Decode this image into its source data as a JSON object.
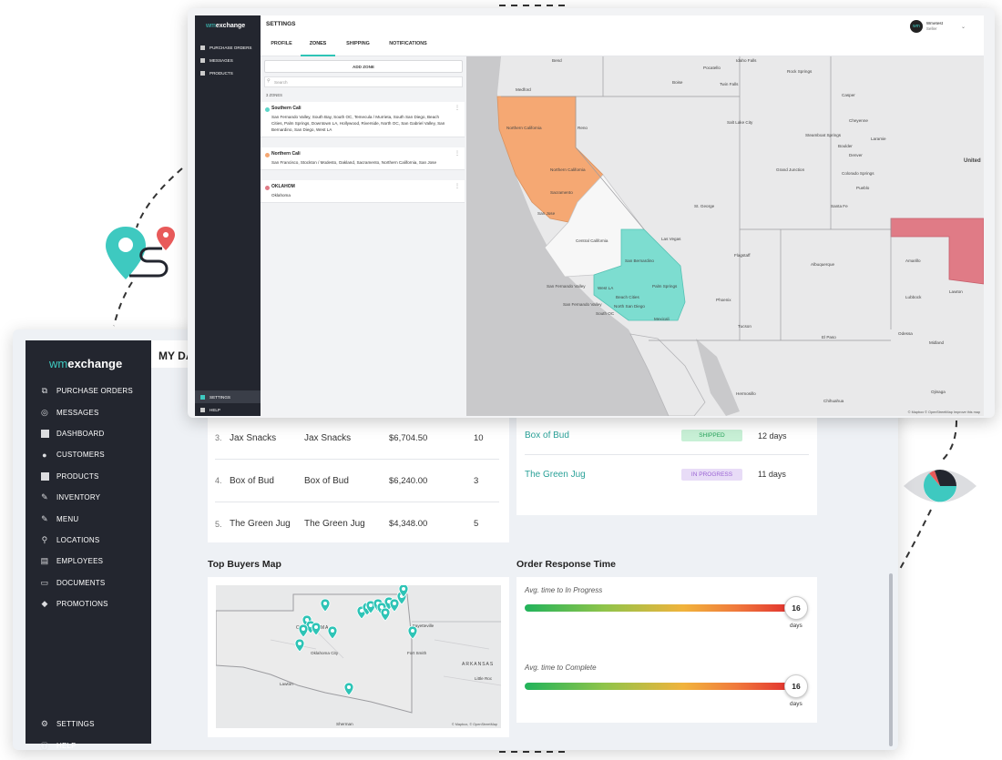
{
  "dashboard": {
    "brand": {
      "wm": "wm",
      "name": "exchange"
    },
    "header_title": "MY DAS",
    "nav": [
      {
        "label": "PURCHASE ORDERS",
        "icon": "purchase-orders-icon"
      },
      {
        "label": "MESSAGES",
        "icon": "messages-icon"
      },
      {
        "label": "DASHBOARD",
        "icon": "dashboard-icon"
      },
      {
        "label": "CUSTOMERS",
        "icon": "customers-icon"
      },
      {
        "label": "PRODUCTS",
        "icon": "products-icon"
      },
      {
        "label": "INVENTORY",
        "icon": "inventory-icon"
      },
      {
        "label": "MENU",
        "icon": "menu-icon"
      },
      {
        "label": "LOCATIONS",
        "icon": "locations-icon"
      },
      {
        "label": "EMPLOYEES",
        "icon": "employees-icon"
      },
      {
        "label": "DOCUMENTS",
        "icon": "documents-icon"
      },
      {
        "label": "PROMOTIONS",
        "icon": "promotions-icon"
      }
    ],
    "nav_bottom": [
      {
        "label": "SETTINGS",
        "icon": "settings-icon"
      },
      {
        "label": "HELP",
        "icon": "help-icon"
      }
    ],
    "top_customers": [
      {
        "rank": "3.",
        "customer": "Jax Snacks",
        "company": "Jax Snacks",
        "amount": "$6,704.50",
        "orders": "10"
      },
      {
        "rank": "4.",
        "customer": "Box of Bud",
        "company": "Box of Bud",
        "amount": "$6,240.00",
        "orders": "3"
      },
      {
        "rank": "5.",
        "customer": "The Green Jug",
        "company": "The Green Jug",
        "amount": "$4,348.00",
        "orders": "5"
      }
    ],
    "order_status": [
      {
        "name": "Box of Bud",
        "status": "SHIPPED",
        "days": "12 days"
      },
      {
        "name": "The Green Jug",
        "status": "IN PROGRESS",
        "days": "11 days"
      }
    ],
    "buyers_map": {
      "title": "Top Buyers Map",
      "labels": {
        "state": "OKLAHOMA",
        "fayetteville": "Fayetteville",
        "arkansas": "ARKANSAS",
        "little_rock": "Little Roc",
        "lawton": "Lawton",
        "sherman": "Sherman",
        "okc": "Oklahoma City",
        "ft_smith": "Fort Smith"
      },
      "attribution": "© Mapbox, © OpenStreetMap"
    },
    "response_time": {
      "title": "Order Response Time",
      "metrics": [
        {
          "label": "Avg. time to In Progress",
          "value": "16",
          "unit": "days",
          "fraction": 1.0
        },
        {
          "label": "Avg. time to Complete",
          "value": "16",
          "unit": "days",
          "fraction": 1.0
        }
      ]
    }
  },
  "settings": {
    "brand": {
      "wm": "wm",
      "name": "exchange"
    },
    "nav": [
      {
        "label": "PURCHASE ORDERS"
      },
      {
        "label": "MESSAGES"
      },
      {
        "label": "PRODUCTS"
      }
    ],
    "nav_bottom": [
      {
        "label": "SETTINGS"
      },
      {
        "label": "HELP"
      }
    ],
    "title": "SETTINGS",
    "tabs": [
      "PROFILE",
      "ZONES",
      "SHIPPING",
      "NOTIFICATIONS"
    ],
    "active_tab": "ZONES",
    "user": {
      "name": "Wmetest",
      "role": "Seller",
      "initials": "wm"
    },
    "add_zone_label": "ADD ZONE",
    "search_placeholder": "Search",
    "zone_count": "3 ZONES",
    "zones": [
      {
        "name": "Southern Cali",
        "color": "#5dd6c9",
        "desc": "San Fernando Valley, South Bay, South OC, Temecula / Murrieta, South San Diego, Beach Cities, Palm Springs, Downtown LA, Hollywood, Riverside, North OC, San Gabriel Valley, San Bernardino, San Diego, West LA"
      },
      {
        "name": "Northern Cali",
        "color": "#f5a873",
        "desc": "San Francisco, Stockton / Modesto, Oakland, Sacramento, Northern California, San Jose"
      },
      {
        "name": "OKLAHOM",
        "color": "#e07b86",
        "desc": "Oklahoma"
      }
    ],
    "map_labels": {
      "medford": "Medford",
      "redding": "Redding",
      "northern_california": "Northern California",
      "northern_california_2": "Northern California",
      "sacramento": "Sacramento",
      "san_jose": "San Jose",
      "central_california": "Central California",
      "san_bernardino": "San Bernardino",
      "palm_springs": "Palm Springs",
      "san_fernando_valley": "San Fernando Valley",
      "west_la": "West LA",
      "beach_cities": "Beach Cities",
      "san_fernando_valley_2": "San Fernando Valley",
      "north_san_diego": "North San Diego",
      "south_oc": "South OC",
      "mexicali": "Mexicali",
      "las_vegas": "Las Vegas",
      "phoenix": "Phoenix",
      "tucson": "Tucson",
      "albuquerque": "Albuquerque",
      "amarillo": "Amarillo",
      "lubbock": "Lubbock",
      "el_paso": "El Paso",
      "cheyenne": "Cheyenne",
      "denver": "Denver",
      "boulder": "Boulder",
      "grand_junction": "Grand Junction",
      "colorado_springs": "Colorado Springs",
      "pueblo": "Pueblo",
      "santa_fe": "Santa Fe",
      "salt_lake": "Salt Lake City",
      "reno": "Reno",
      "boise": "Boise",
      "twin_falls": "Twin Falls",
      "united": "United",
      "hermosillo": "Hermosillo",
      "chihuahua": "Chihuahua",
      "ojinaga": "Ojinaga",
      "odessa": "Odessa",
      "midland": "Midland",
      "st_george": "St. George",
      "flagstaff": "Flagstaff",
      "rock_springs": "Rock Springs",
      "steamboat": "Steamboat Springs",
      "casper": "Casper",
      "bend": "Bend",
      "idaho_falls": "Idaho Falls",
      "pocatello": "Pocatello",
      "laramie": "Laramie",
      "lawton": "Lawton"
    },
    "map_attribution": "© Mapbox © OpenStreetMap Improve this map"
  }
}
